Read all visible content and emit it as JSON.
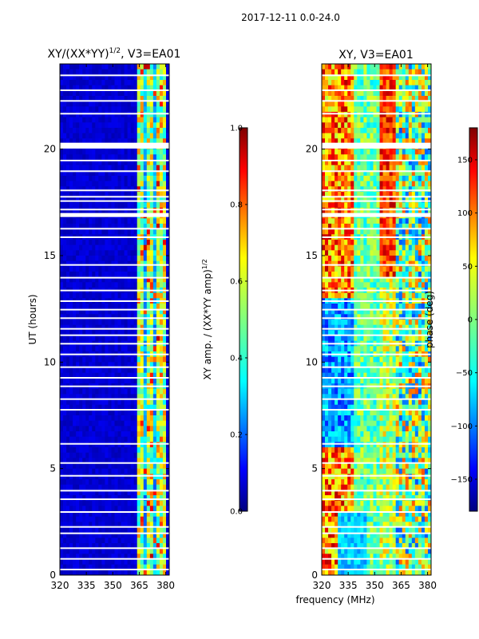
{
  "suptitle": "2017-12-11 0.0-24.0",
  "shared_xlabel": "frequency (MHz)",
  "chart_data": [
    {
      "type": "heatmap",
      "title_main": "XY/(XX*YY)",
      "title_exp": "1/2",
      "title_tail": ", V3=EA01",
      "ylabel": "UT (hours)",
      "xlim": [
        320,
        382
      ],
      "ylim": [
        0,
        24
      ],
      "xticks": [
        320,
        335,
        350,
        365,
        380
      ],
      "yticks": [
        0,
        5,
        10,
        15,
        20
      ],
      "x_tick_labels": [
        "320",
        "335",
        "350",
        "365",
        "380"
      ],
      "y_tick_labels": [
        "0",
        "5",
        "10",
        "15",
        "20"
      ],
      "colorbar": {
        "label_main": "XY amp. / (XX*YY amp)",
        "label_exp": "1/2",
        "range": [
          0.0,
          1.0
        ],
        "ticks": [
          "0.0",
          "0.2",
          "0.4",
          "0.6",
          "0.8",
          "1.0"
        ],
        "tick_values": [
          0.0,
          0.2,
          0.4,
          0.6,
          0.8,
          1.0
        ]
      }
    },
    {
      "type": "heatmap",
      "title": "XY, V3=EA01",
      "xlim": [
        320,
        382
      ],
      "ylim": [
        0,
        24
      ],
      "xticks": [
        320,
        335,
        350,
        365,
        380
      ],
      "yticks": [
        0,
        5,
        10,
        15,
        20
      ],
      "x_tick_labels": [
        "320",
        "335",
        "350",
        "365",
        "380"
      ],
      "y_tick_labels": [
        "0",
        "5",
        "10",
        "15",
        "20"
      ],
      "colorbar": {
        "label": "phase (deg)",
        "range": [
          -180,
          180
        ],
        "ticks": [
          "−150",
          "−100",
          "−50",
          "0",
          "50",
          "100",
          "150"
        ],
        "tick_values": [
          -150,
          -100,
          -50,
          0,
          50,
          100,
          150
        ]
      }
    }
  ]
}
